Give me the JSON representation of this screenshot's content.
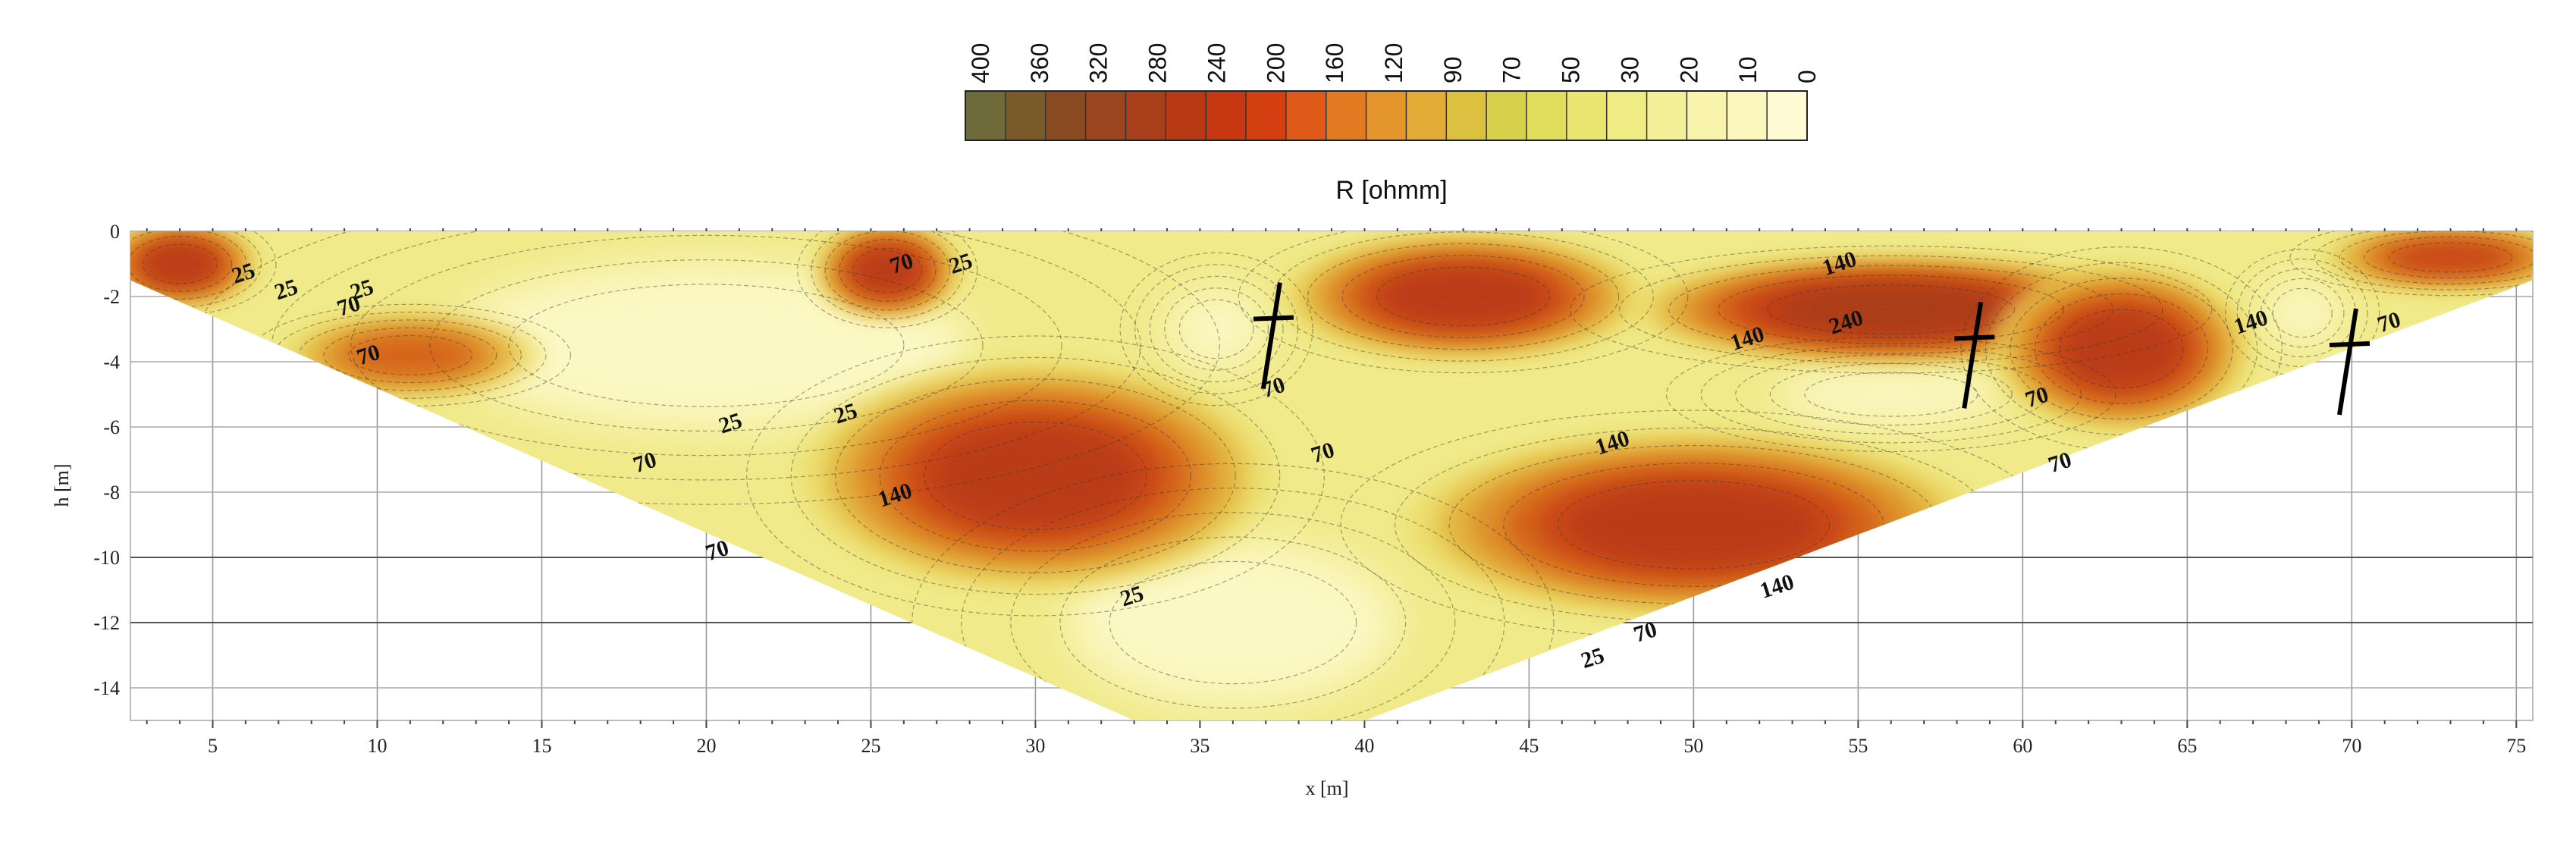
{
  "chart_data": {
    "type": "heatmap",
    "title": "",
    "xlabel": "x [m]",
    "ylabel": "h [m]",
    "xlim": [
      2.5,
      75.5
    ],
    "ylim": [
      -15,
      0
    ],
    "x_ticks": [
      5,
      10,
      15,
      20,
      25,
      30,
      35,
      40,
      45,
      50,
      55,
      60,
      65,
      70,
      75
    ],
    "y_ticks": [
      0,
      -2,
      -4,
      -6,
      -8,
      -10,
      -12,
      -14
    ],
    "grid": true,
    "colorbar": {
      "title": "R [ohmm]",
      "tick_labels": [
        "400",
        "360",
        "320",
        "280",
        "240",
        "200",
        "160",
        "120",
        "90",
        "70",
        "50",
        "30",
        "20",
        "10",
        "0"
      ],
      "colors": [
        "#6e6a3a",
        "#7a5a2a",
        "#8a4a22",
        "#9a4420",
        "#a93f1a",
        "#b83a15",
        "#c73812",
        "#d43f12",
        "#de5a18",
        "#e27a22",
        "#e4962c",
        "#e2ac36",
        "#dcc040",
        "#d6d04a",
        "#e0dc5c",
        "#eae670",
        "#f0ec84",
        "#f4f098",
        "#f8f4ac",
        "#fbf7bf",
        "#fdfad4"
      ]
    },
    "section_outline": [
      [
        2.5,
        0
      ],
      [
        75.5,
        0
      ],
      [
        75.5,
        -1.5
      ],
      [
        40,
        -15
      ],
      [
        33,
        -15
      ],
      [
        2.5,
        -1.5
      ]
    ],
    "anomalies": [
      {
        "x": 30,
        "h": -7.5,
        "rx": 4.5,
        "rh": 2.2,
        "level": "140"
      },
      {
        "x": 50,
        "h": -9.0,
        "rx": 5.5,
        "rh": 1.8,
        "level": "140"
      },
      {
        "x": 56,
        "h": -2.4,
        "rx": 5.0,
        "rh": 1.0,
        "level": "240"
      },
      {
        "x": 43,
        "h": -2.0,
        "rx": 3.5,
        "rh": 1.2,
        "level": "140"
      },
      {
        "x": 63,
        "h": -3.6,
        "rx": 2.5,
        "rh": 1.6,
        "level": "140"
      },
      {
        "x": 25.5,
        "h": -1.2,
        "rx": 1.4,
        "rh": 0.9,
        "level": "140"
      },
      {
        "x": 4,
        "h": -1.0,
        "rx": 1.5,
        "rh": 0.8,
        "level": "140"
      },
      {
        "x": 11,
        "h": -3.8,
        "rx": 2.5,
        "rh": 0.8,
        "level": "90"
      },
      {
        "x": 73,
        "h": -0.8,
        "rx": 2.5,
        "rh": 0.6,
        "level": "120"
      }
    ],
    "low_zones": [
      {
        "x": 20,
        "h": -3.5,
        "rx": 8,
        "rh": 2.5
      },
      {
        "x": 36,
        "h": -12,
        "rx": 5,
        "rh": 2.5
      },
      {
        "x": 56,
        "h": -5.0,
        "rx": 3.5,
        "rh": 0.9
      },
      {
        "x": 35.5,
        "h": -3.0,
        "rx": 1.5,
        "rh": 1.2
      },
      {
        "x": 68.5,
        "h": -2.5,
        "rx": 1.2,
        "rh": 1.0
      }
    ],
    "contour_labels": [
      {
        "text": "25",
        "x": 6.0,
        "h": -1.5
      },
      {
        "text": "25",
        "x": 7.3,
        "h": -2.0
      },
      {
        "text": "25",
        "x": 9.6,
        "h": -2.0
      },
      {
        "text": "70",
        "x": 9.2,
        "h": -2.5
      },
      {
        "text": "70",
        "x": 9.8,
        "h": -4.0
      },
      {
        "text": "70",
        "x": 26.0,
        "h": -1.2
      },
      {
        "text": "25",
        "x": 27.8,
        "h": -1.2
      },
      {
        "text": "70",
        "x": 37.3,
        "h": -5.0
      },
      {
        "text": "25",
        "x": 20.8,
        "h": -6.1
      },
      {
        "text": "25",
        "x": 24.3,
        "h": -5.8
      },
      {
        "text": "70",
        "x": 18.2,
        "h": -7.3
      },
      {
        "text": "70",
        "x": 38.8,
        "h": -7.0
      },
      {
        "text": "140",
        "x": 25.8,
        "h": -8.3
      },
      {
        "text": "70",
        "x": 20.4,
        "h": -10.0
      },
      {
        "text": "25",
        "x": 33.0,
        "h": -11.4
      },
      {
        "text": "140",
        "x": 54.5,
        "h": -1.2
      },
      {
        "text": "240",
        "x": 54.7,
        "h": -3.0
      },
      {
        "text": "140",
        "x": 51.7,
        "h": -3.5
      },
      {
        "text": "70",
        "x": 60.5,
        "h": -5.3
      },
      {
        "text": "140",
        "x": 47.6,
        "h": -6.7
      },
      {
        "text": "70",
        "x": 61.2,
        "h": -7.3
      },
      {
        "text": "140",
        "x": 52.6,
        "h": -11.1
      },
      {
        "text": "70",
        "x": 48.6,
        "h": -12.5
      },
      {
        "text": "25",
        "x": 47.0,
        "h": -13.3
      },
      {
        "text": "140",
        "x": 67.0,
        "h": -3.0
      },
      {
        "text": "70",
        "x": 71.2,
        "h": -3.0
      }
    ],
    "crosses": [
      {
        "x": 37.2,
        "h": -3.2
      },
      {
        "x": 58.5,
        "h": -3.8
      },
      {
        "x": 69.9,
        "h": -4.0
      }
    ]
  }
}
